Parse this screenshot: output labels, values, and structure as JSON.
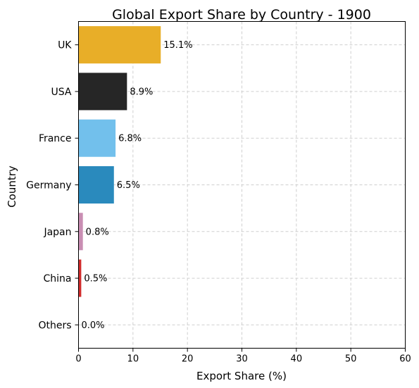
{
  "chart_data": {
    "type": "bar",
    "orientation": "horizontal",
    "title": "Global Export Share by Country - 1900",
    "xlabel": "Export Share (%)",
    "ylabel": "Country",
    "xlim": [
      0,
      60
    ],
    "xticks": [
      0,
      10,
      20,
      30,
      40,
      50,
      60
    ],
    "grid": true,
    "categories": [
      "UK",
      "USA",
      "France",
      "Germany",
      "Japan",
      "China",
      "Others"
    ],
    "values": [
      15.1,
      8.9,
      6.8,
      6.5,
      0.8,
      0.5,
      0.0
    ],
    "value_labels": [
      "15.1%",
      "8.9%",
      "6.8%",
      "6.5%",
      "0.8%",
      "0.5%",
      "0.0%"
    ],
    "colors": [
      "#e8ae28",
      "#262626",
      "#72c0ec",
      "#2a8abd",
      "#c98eb3",
      "#d22c2c",
      "#ffffff"
    ]
  }
}
